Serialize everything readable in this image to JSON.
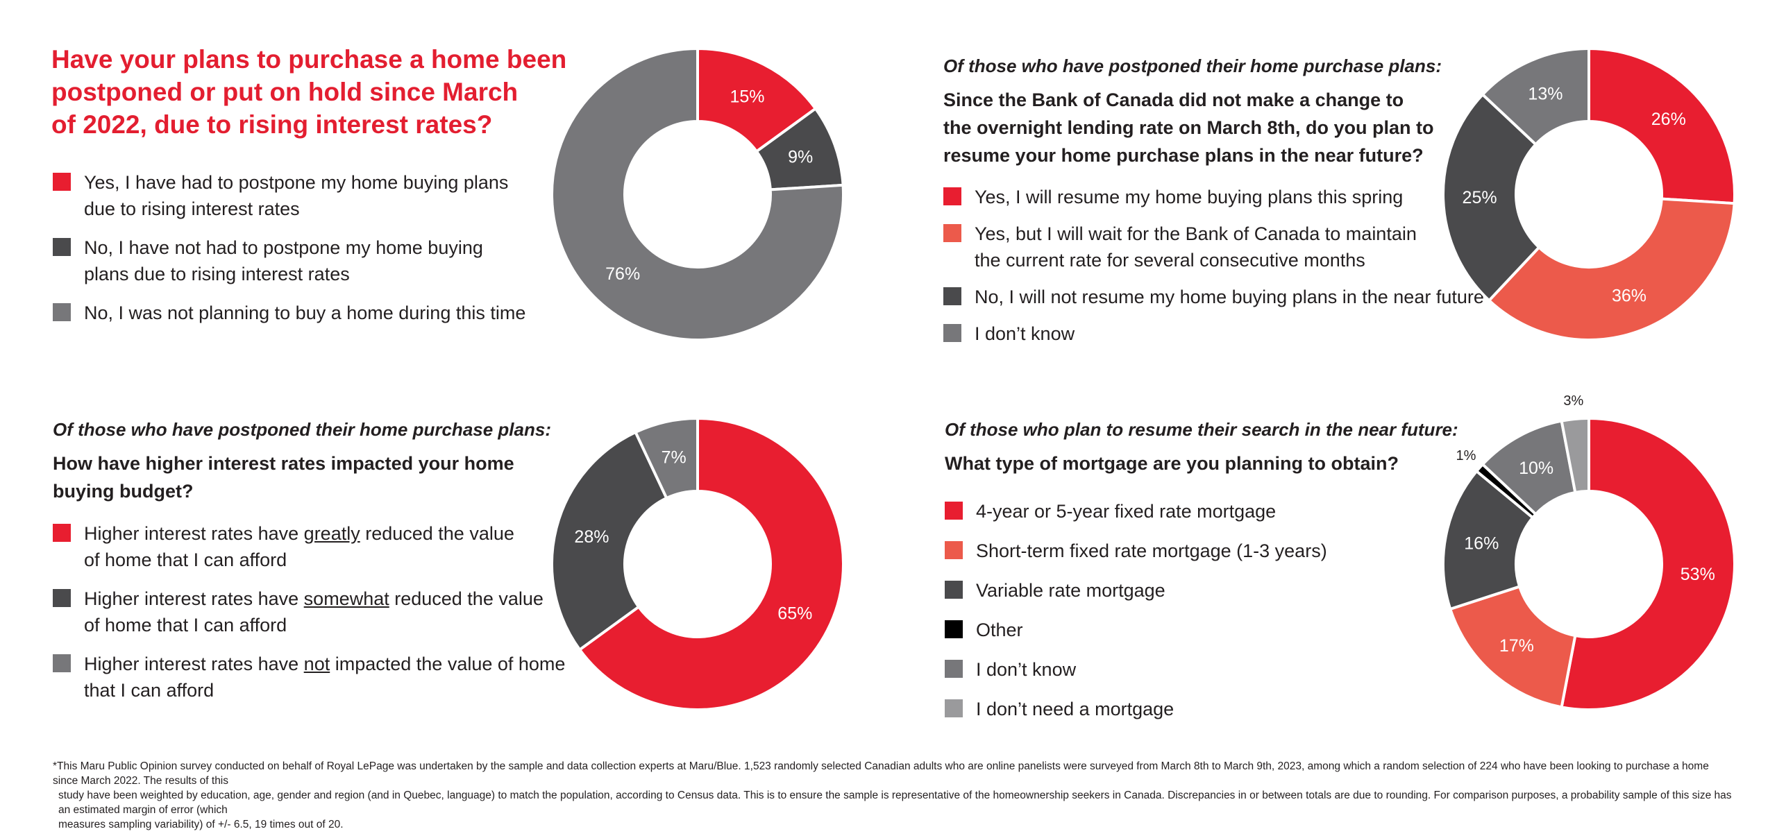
{
  "colors": {
    "red": "#e81e30",
    "coral": "#ec5a4b",
    "dark_gray": "#4a4a4c",
    "mid_gray": "#77777a",
    "light_gray": "#9a9a9c",
    "black": "#000000",
    "title_red": "#e31e30"
  },
  "chart_data": [
    {
      "type": "pie",
      "donut": true,
      "title": "Have your plans to purchase a home been postponed or put on hold since March of 2022, due to rising interest rates?",
      "title_lines": [
        "Have your plans to purchase a home been",
        "postponed or put on hold since March",
        "of 2022, due to rising interest rates?"
      ],
      "legend": [
        {
          "lines": [
            "Yes, I have had to postpone my home buying plans",
            "due to rising interest rates"
          ],
          "color": "#e81e30"
        },
        {
          "lines": [
            "No, I have not had to postpone my home buying",
            "plans due to rising interest rates"
          ],
          "color": "#4a4a4c"
        },
        {
          "lines": [
            "No, I was not planning to buy a home during this time"
          ],
          "color": "#77777a"
        }
      ],
      "slices": [
        {
          "value": 15,
          "label": "15%",
          "color": "#e81e30"
        },
        {
          "value": 9,
          "label": "9%",
          "color": "#4a4a4c"
        },
        {
          "value": 76,
          "label": "76%",
          "color": "#77777a"
        }
      ]
    },
    {
      "type": "pie",
      "donut": true,
      "intro": "Of those who have postponed their home purchase plans:",
      "title": "Since the Bank of Canada did not make a change to the overnight lending rate on March 8th, do you plan to resume your home purchase plans in the near future?",
      "title_lines": [
        "Since the Bank of Canada did not make a change to",
        "the overnight lending rate on March 8th, do you plan to",
        "resume your home purchase plans in the near future?"
      ],
      "legend": [
        {
          "lines": [
            "Yes, I will resume my home buying plans this spring"
          ],
          "color": "#e81e30"
        },
        {
          "lines": [
            "Yes, but I will wait for the Bank of Canada to maintain",
            "the current rate for several consecutive months"
          ],
          "color": "#ec5a4b"
        },
        {
          "lines": [
            "No, I will not resume my home buying plans in the near future"
          ],
          "color": "#4a4a4c"
        },
        {
          "lines": [
            "I don’t know"
          ],
          "color": "#77777a"
        }
      ],
      "slices": [
        {
          "value": 26,
          "label": "26%",
          "color": "#e81e30"
        },
        {
          "value": 36,
          "label": "36%",
          "color": "#ec5a4b"
        },
        {
          "value": 25,
          "label": "25%",
          "color": "#4a4a4c"
        },
        {
          "value": 13,
          "label": "13%",
          "color": "#77777a"
        }
      ]
    },
    {
      "type": "pie",
      "donut": true,
      "intro": "Of those who have postponed their home purchase plans:",
      "title": "How have higher interest rates impacted your home buying budget?",
      "title_lines": [
        "How have higher interest rates impacted your home",
        "buying budget?"
      ],
      "legend": [
        {
          "lines": [
            "Higher interest rates have greatly reduced the value",
            "of home that I can afford"
          ],
          "color": "#e81e30",
          "before": "Higher interest rates have ",
          "emph": "greatly",
          "after": " reduced the value",
          "line2": "of home that I can afford"
        },
        {
          "lines": [
            "Higher interest rates have somewhat reduced the value",
            "of home that I can afford"
          ],
          "color": "#4a4a4c",
          "before": "Higher interest rates have ",
          "emph": "somewhat",
          "after": " reduced the value",
          "line2": "of home that I can afford"
        },
        {
          "lines": [
            "Higher interest rates have not impacted the value of home",
            "that I can afford"
          ],
          "color": "#77777a",
          "before": "Higher interest rates have ",
          "emph": "not",
          "after": " impacted the value of home",
          "line2": "that I can afford"
        }
      ],
      "slices": [
        {
          "value": 65,
          "label": "65%",
          "color": "#e81e30"
        },
        {
          "value": 28,
          "label": "28%",
          "color": "#4a4a4c"
        },
        {
          "value": 7,
          "label": "7%",
          "color": "#77777a"
        }
      ]
    },
    {
      "type": "pie",
      "donut": true,
      "intro": "Of those who plan to resume their search in the near future:",
      "title": "What type of mortgage are you planning to obtain?",
      "title_lines": [
        "What type of mortgage are you planning to obtain?"
      ],
      "legend": [
        {
          "lines": [
            "4-year or 5-year fixed rate mortgage"
          ],
          "color": "#e81e30"
        },
        {
          "lines": [
            "Short-term fixed rate mortgage (1-3 years)"
          ],
          "color": "#ec5a4b"
        },
        {
          "lines": [
            "Variable rate mortgage"
          ],
          "color": "#4a4a4c"
        },
        {
          "lines": [
            "Other"
          ],
          "color": "#000000"
        },
        {
          "lines": [
            "I don’t know"
          ],
          "color": "#77777a"
        },
        {
          "lines": [
            "I don’t need a mortgage"
          ],
          "color": "#9a9a9c"
        }
      ],
      "slices": [
        {
          "value": 53,
          "label": "53%",
          "color": "#e81e30"
        },
        {
          "value": 17,
          "label": "17%",
          "color": "#ec5a4b"
        },
        {
          "value": 16,
          "label": "16%",
          "color": "#4a4a4c"
        },
        {
          "value": 1,
          "label": "1%",
          "color": "#000000",
          "outside": true
        },
        {
          "value": 10,
          "label": "10%",
          "color": "#77777a"
        },
        {
          "value": 3,
          "label": "3%",
          "color": "#9a9a9c",
          "outside": true
        }
      ]
    }
  ],
  "footnote": {
    "line1": "*This Maru Public Opinion survey conducted on behalf of Royal LePage was undertaken by the sample and data collection experts at Maru/Blue. 1,523 randomly selected Canadian adults who are online panelists were surveyed from March 8th to March 9th, 2023, among which a random selection of 224 who have been looking to purchase a home since March 2022. The results of this",
    "line2": "study have been weighted by education, age, gender and region (and in Quebec, language) to match the population, according to Census data. This is to ensure the sample is representative of the homeownership seekers in Canada. Discrepancies in or between totals are due to rounding. For comparison purposes, a probability sample of this size has an estimated margin of error (which",
    "line3": "measures sampling variability) of +/- 6.5, 19 times out of 20."
  }
}
